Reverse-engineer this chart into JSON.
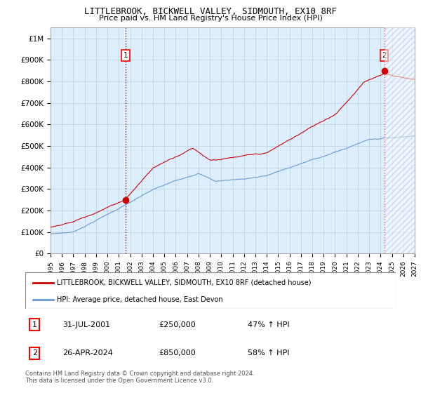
{
  "title": "LITTLEBROOK, BICKWELL VALLEY, SIDMOUTH, EX10 8RF",
  "subtitle": "Price paid vs. HM Land Registry's House Price Index (HPI)",
  "ylim": [
    0,
    1050000
  ],
  "yticks": [
    0,
    100000,
    200000,
    300000,
    400000,
    500000,
    600000,
    700000,
    800000,
    900000,
    1000000
  ],
  "ytick_labels": [
    "£0",
    "£100K",
    "£200K",
    "£300K",
    "£400K",
    "£500K",
    "£600K",
    "£700K",
    "£800K",
    "£900K",
    "£1M"
  ],
  "red_line_color": "#cc0000",
  "blue_line_color": "#6699cc",
  "plot_bg_color": "#ddeeff",
  "sale1_x": 2001.58,
  "sale1_y": 250000,
  "sale2_x": 2024.32,
  "sale2_y": 850000,
  "legend_red_label": "LITTLEBROOK, BICKWELL VALLEY, SIDMOUTH, EX10 8RF (detached house)",
  "legend_blue_label": "HPI: Average price, detached house, East Devon",
  "annotation1_num": "1",
  "annotation1_date": "31-JUL-2001",
  "annotation1_price": "£250,000",
  "annotation1_hpi": "47% ↑ HPI",
  "annotation2_num": "2",
  "annotation2_date": "26-APR-2024",
  "annotation2_price": "£850,000",
  "annotation2_hpi": "58% ↑ HPI",
  "footer": "Contains HM Land Registry data © Crown copyright and database right 2024.\nThis data is licensed under the Open Government Licence v3.0.",
  "grid_color": "#bbccdd",
  "xlim_start": 1995,
  "xlim_end": 2027
}
